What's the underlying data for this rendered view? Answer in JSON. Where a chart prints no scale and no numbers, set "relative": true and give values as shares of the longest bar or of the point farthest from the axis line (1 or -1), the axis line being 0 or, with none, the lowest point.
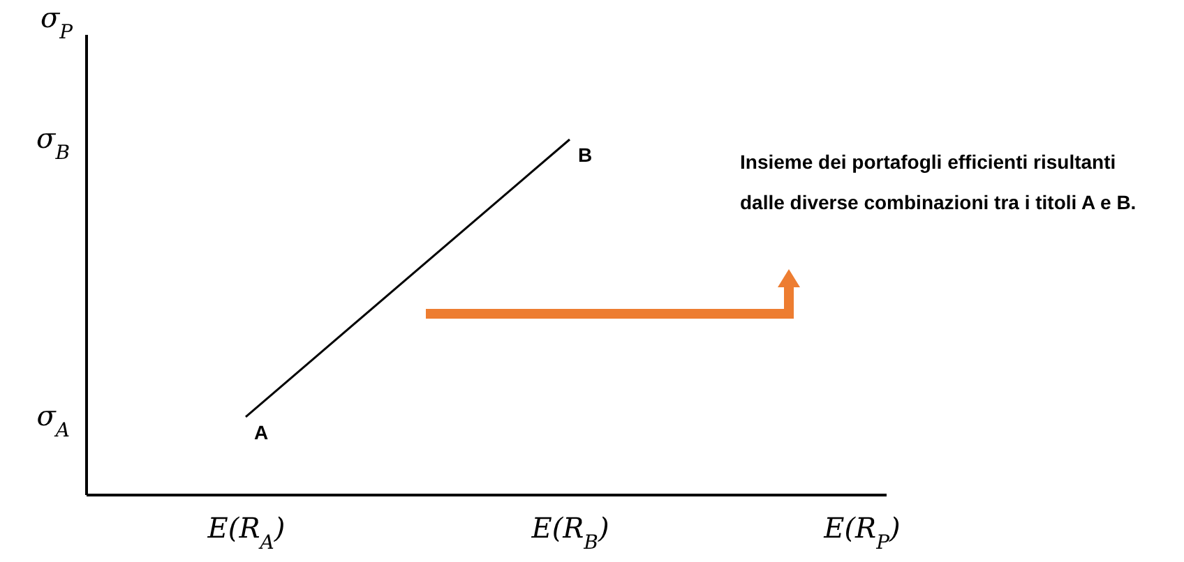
{
  "chart_data": {
    "type": "line",
    "relative": true,
    "xlabel": "E(R$_{P}$)",
    "ylabel": "σ$_{P}$",
    "categories": [
      "E(R$_{A}$)",
      "E(R$_{B}$)"
    ],
    "series": [
      {
        "color": "#000000",
        "values": [
          0.22,
          1
        ]
      }
    ],
    "annotations": [
      {
        "text": "A",
        "x": "E(R$_{A}$)",
        "y": 0.22
      },
      {
        "text": "B",
        "x": "E(R$_{B}$)",
        "y": 1
      },
      "σ$_{A}$",
      "σ$_{B}$",
      "Insieme dei portafogli efficienti risultanti dalle diverse combinazioni tra i titoli A e B."
    ]
  }
}
